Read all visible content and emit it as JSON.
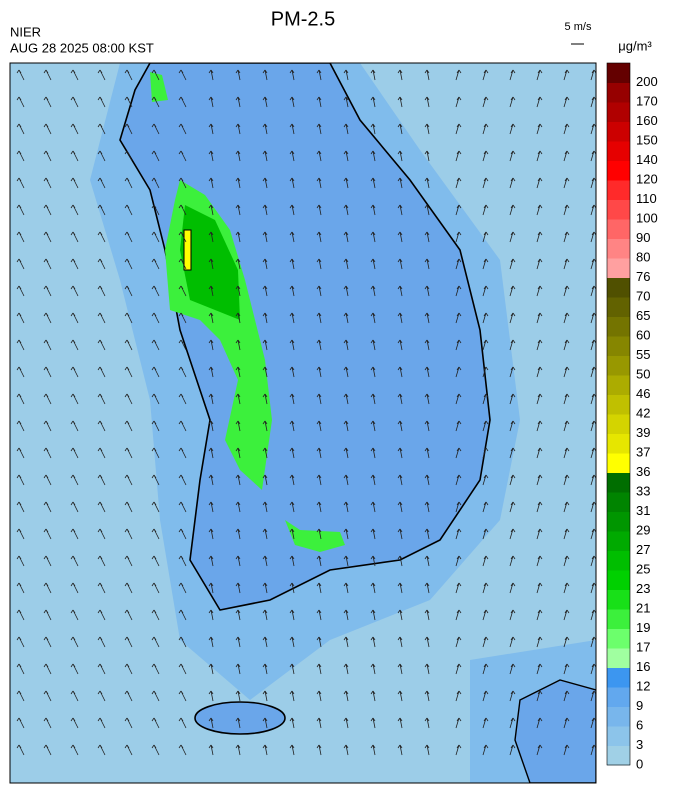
{
  "header": {
    "title": "PM-2.5",
    "agency": "NIER",
    "time": "AUG 28 2025 08:00 KST",
    "wind_scale": "5 m/s",
    "unit": "μg/m³"
  },
  "colorbar": {
    "levels": [
      0,
      3,
      6,
      9,
      12,
      16,
      17,
      19,
      21,
      23,
      25,
      27,
      29,
      31,
      33,
      36,
      37,
      39,
      42,
      46,
      50,
      55,
      60,
      65,
      70,
      76,
      80,
      90,
      100,
      110,
      120,
      140,
      150,
      160,
      170,
      200
    ],
    "colors": [
      "#a0d0e6",
      "#8cc4ea",
      "#78b6ec",
      "#62a8ee",
      "#3c96f0",
      "#a0ffa0",
      "#6cff6c",
      "#3cf03c",
      "#18e018",
      "#00d000",
      "#00be00",
      "#00aa00",
      "#009600",
      "#008400",
      "#006e00",
      "#ffff00",
      "#e6e600",
      "#d4d400",
      "#c0c000",
      "#acac00",
      "#989800",
      "#868600",
      "#747400",
      "#626200",
      "#505000",
      "#ffa0a0",
      "#ff8484",
      "#ff6666",
      "#ff4848",
      "#ff2a2a",
      "#ff0000",
      "#e60000",
      "#cc0000",
      "#b00000",
      "#960000",
      "#640000"
    ]
  }
}
